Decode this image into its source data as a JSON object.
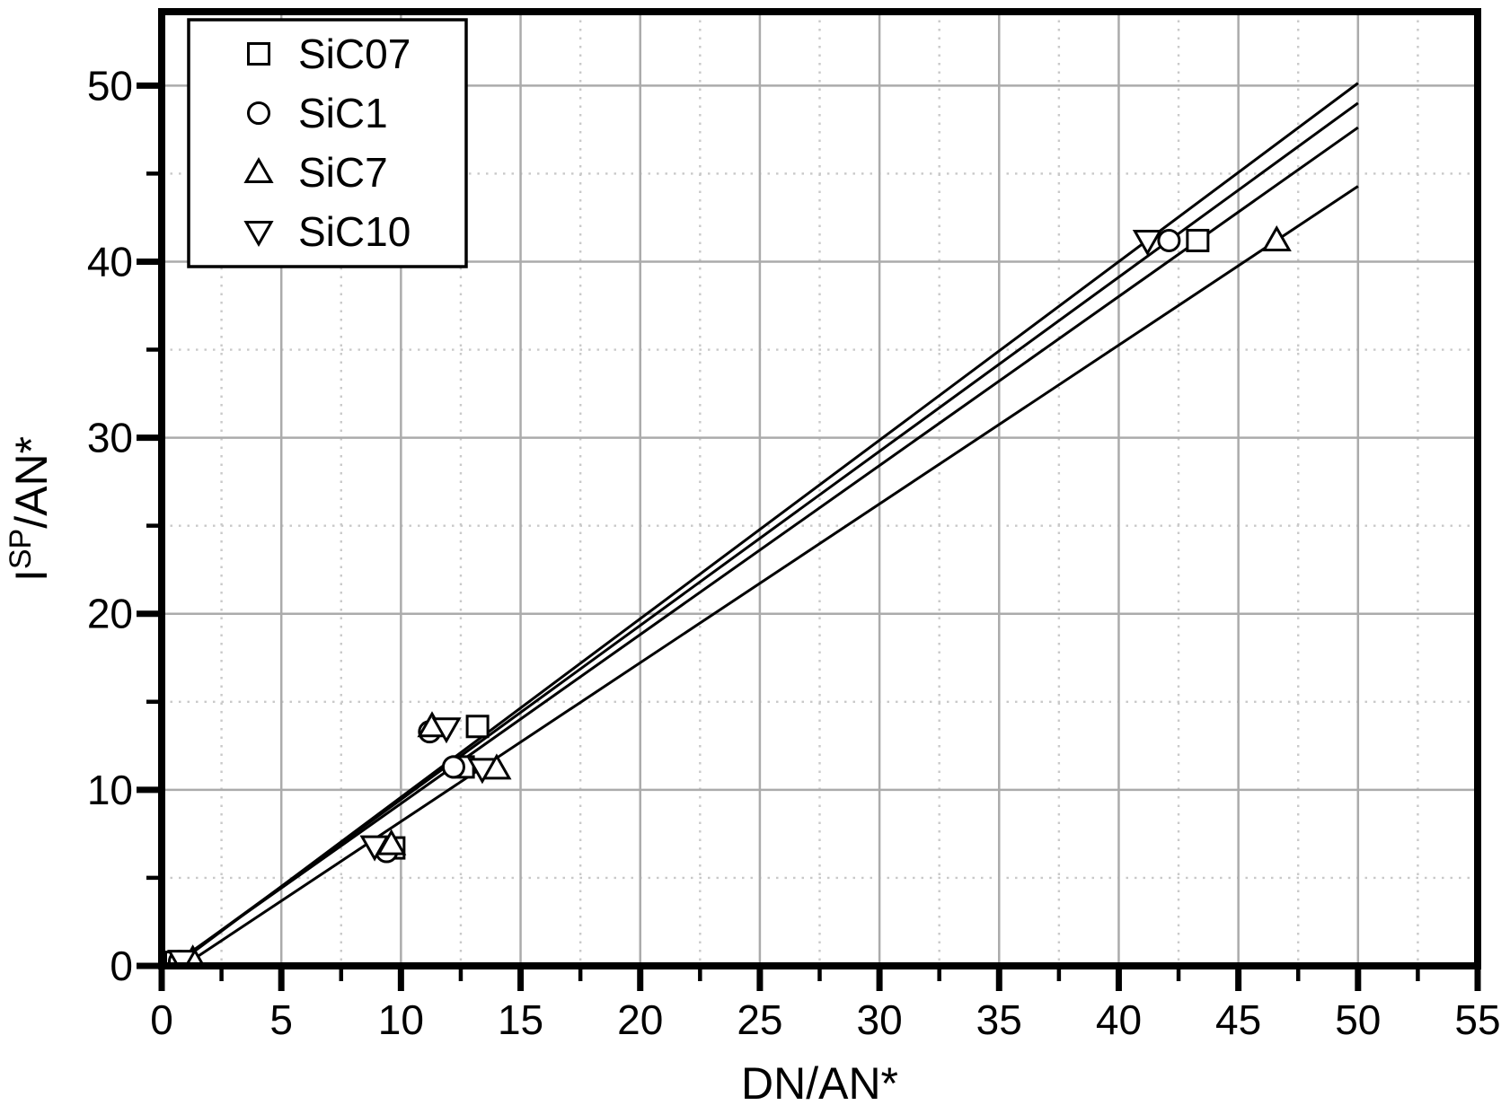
{
  "figure": {
    "background": "#ffffff",
    "axis_color": "#000000"
  },
  "chart_data": {
    "type": "scatter",
    "title": "",
    "xlabel": "DN/AN*",
    "ylabel": "I^SP/AN*",
    "ylabel_parts": {
      "base": "I",
      "sup": "SP",
      "rest": "/AN*"
    },
    "xlim": [
      0,
      55
    ],
    "ylim": [
      0,
      54.2
    ],
    "x_major_ticks": [
      0,
      5,
      10,
      15,
      20,
      25,
      30,
      35,
      40,
      45,
      50,
      55
    ],
    "x_minor_ticks": [
      2.5,
      7.5,
      12.5,
      17.5,
      22.5,
      27.5,
      32.5,
      37.5,
      42.5,
      47.5,
      52.5
    ],
    "y_major_ticks": [
      0,
      10,
      20,
      30,
      40,
      50
    ],
    "y_minor_ticks": [
      5,
      15,
      25,
      35,
      45
    ],
    "grid": {
      "major_style": "solid",
      "minor_style": "dotted",
      "major_color": "#ababab",
      "minor_color": "#c9c9c9"
    },
    "legend": {
      "position": "top-left",
      "items": [
        "SiC07",
        "SiC1",
        "SiC7",
        "SiC10"
      ]
    },
    "series": [
      {
        "name": "SiC07",
        "marker": "square",
        "color": "#000000",
        "points": [
          [
            0.6,
            0.2
          ],
          [
            9.7,
            6.7
          ],
          [
            12.6,
            11.3
          ],
          [
            13.2,
            13.6
          ],
          [
            43.3,
            41.2
          ]
        ],
        "fit": {
          "slope": 0.96,
          "intercept": -0.38,
          "x_start": 0.45,
          "x_end": 50
        }
      },
      {
        "name": "SiC1",
        "marker": "circle",
        "color": "#000000",
        "points": [
          [
            0.75,
            0.25
          ],
          [
            9.4,
            6.5
          ],
          [
            11.2,
            13.3
          ],
          [
            12.2,
            11.3
          ],
          [
            42.1,
            41.2
          ]
        ],
        "fit": {
          "slope": 0.989,
          "intercept": -0.44,
          "x_start": 0.45,
          "x_end": 50
        }
      },
      {
        "name": "SiC7",
        "marker": "triangle-up",
        "color": "#000000",
        "points": [
          [
            1.3,
            0.35
          ],
          [
            9.6,
            6.9
          ],
          [
            11.3,
            13.6
          ],
          [
            14.0,
            11.2
          ],
          [
            46.6,
            41.2
          ]
        ],
        "fit": {
          "slope": 0.902,
          "intercept": -0.82,
          "x_start": 0.5,
          "x_end": 50
        }
      },
      {
        "name": "SiC10",
        "marker": "triangle-down",
        "color": "#000000",
        "points": [
          [
            0.85,
            0.3
          ],
          [
            8.9,
            6.8
          ],
          [
            11.9,
            13.5
          ],
          [
            13.4,
            11.2
          ],
          [
            41.2,
            41.2
          ]
        ],
        "fit": {
          "slope": 1.014,
          "intercept": -0.56,
          "x_start": 0.45,
          "x_end": 50
        }
      }
    ]
  }
}
